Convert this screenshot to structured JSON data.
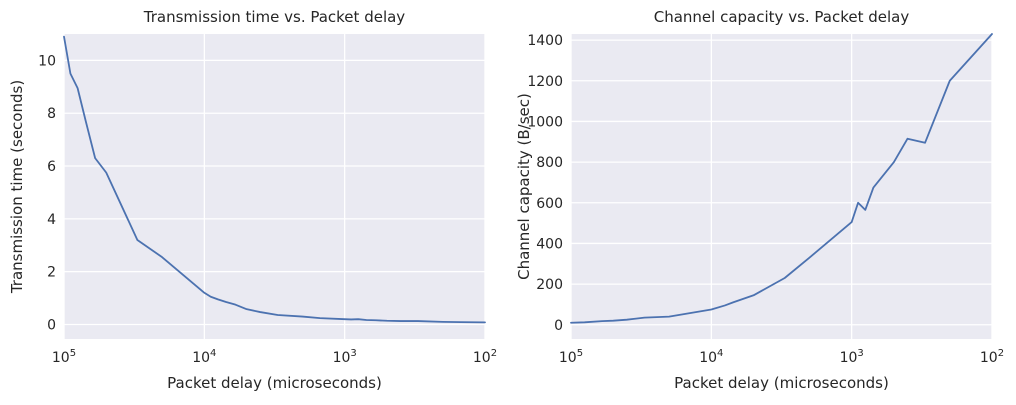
{
  "chart_data": [
    {
      "type": "line",
      "title": "Transmission time vs. Packet delay",
      "xlabel": "Packet delay (microseconds)",
      "ylabel": "Transmission time (seconds)",
      "xscale": "log",
      "x_inverted": true,
      "xlim": [
        100000,
        100
      ],
      "ylim": [
        -0.55,
        11.0
      ],
      "grid": true,
      "xticks": [
        {
          "value": 100000,
          "base": "10",
          "exp": "5"
        },
        {
          "value": 10000,
          "base": "10",
          "exp": "4"
        },
        {
          "value": 1000,
          "base": "10",
          "exp": "3"
        },
        {
          "value": 100,
          "base": "10",
          "exp": "2"
        }
      ],
      "yticks": [
        {
          "value": 0,
          "label": "0"
        },
        {
          "value": 2,
          "label": "2"
        },
        {
          "value": 4,
          "label": "4"
        },
        {
          "value": 6,
          "label": "6"
        },
        {
          "value": 8,
          "label": "8"
        },
        {
          "value": 10,
          "label": "10"
        }
      ],
      "series": [
        {
          "color": "#4c72b0",
          "x": [
            100000,
            90000,
            80000,
            70000,
            60000,
            50000,
            30000,
            20000,
            10000,
            9000,
            8000,
            7000,
            6000,
            5000,
            4000,
            3000,
            2000,
            1500,
            1000,
            900,
            800,
            700,
            600,
            500,
            400,
            300,
            200,
            150,
            100
          ],
          "y": [
            10.9,
            9.5,
            8.95,
            7.7,
            6.3,
            5.75,
            3.2,
            2.55,
            1.2,
            1.05,
            0.95,
            0.85,
            0.75,
            0.58,
            0.47,
            0.36,
            0.3,
            0.24,
            0.2,
            0.19,
            0.2,
            0.17,
            0.16,
            0.14,
            0.13,
            0.13,
            0.1,
            0.09,
            0.08
          ]
        }
      ]
    },
    {
      "type": "line",
      "title": "Channel capacity vs. Packet delay",
      "xlabel": "Packet delay (microseconds)",
      "ylabel": "Channel capacity (B/sec)",
      "xscale": "log",
      "x_inverted": true,
      "xlim": [
        100000,
        100
      ],
      "ylim": [
        -70,
        1430
      ],
      "grid": true,
      "xticks": [
        {
          "value": 100000,
          "base": "10",
          "exp": "5"
        },
        {
          "value": 10000,
          "base": "10",
          "exp": "4"
        },
        {
          "value": 1000,
          "base": "10",
          "exp": "3"
        },
        {
          "value": 100,
          "base": "10",
          "exp": "2"
        }
      ],
      "yticks": [
        {
          "value": 0,
          "label": "0"
        },
        {
          "value": 200,
          "label": "200"
        },
        {
          "value": 400,
          "label": "400"
        },
        {
          "value": 600,
          "label": "600"
        },
        {
          "value": 800,
          "label": "800"
        },
        {
          "value": 1000,
          "label": "1000"
        },
        {
          "value": 1200,
          "label": "1200"
        },
        {
          "value": 1400,
          "label": "1400"
        }
      ],
      "series": [
        {
          "color": "#4c72b0",
          "x": [
            100000,
            80000,
            60000,
            50000,
            40000,
            30000,
            20000,
            10000,
            8000,
            7000,
            5000,
            3000,
            2000,
            1000,
            900,
            800,
            700,
            500,
            400,
            300,
            200,
            100
          ],
          "y": [
            10,
            12,
            18,
            20,
            25,
            35,
            40,
            75,
            95,
            110,
            145,
            230,
            330,
            505,
            600,
            565,
            675,
            800,
            915,
            895,
            1200,
            1430
          ]
        }
      ]
    }
  ]
}
